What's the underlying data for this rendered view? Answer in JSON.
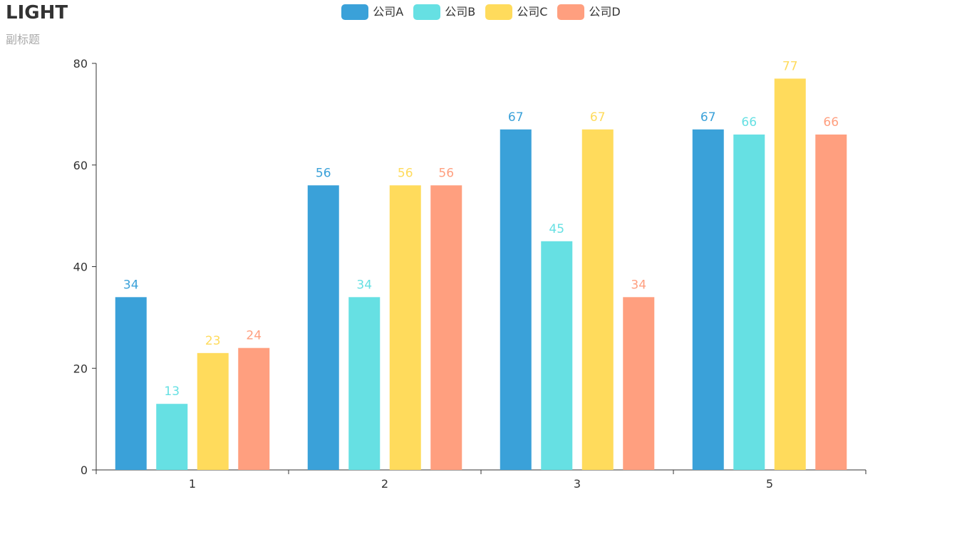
{
  "chart_data": {
    "type": "bar",
    "title": "LIGHT",
    "subtitle": "副标题",
    "categories": [
      "1",
      "2",
      "3",
      "5"
    ],
    "series": [
      {
        "name": "公司A",
        "color": "#3aa1d9",
        "values": [
          34,
          56,
          67,
          67
        ]
      },
      {
        "name": "公司B",
        "color": "#66e0e3",
        "values": [
          13,
          34,
          45,
          66
        ]
      },
      {
        "name": "公司C",
        "color": "#ffdb5c",
        "values": [
          23,
          56,
          67,
          77
        ]
      },
      {
        "name": "公司D",
        "color": "#ff9f7f",
        "values": [
          24,
          56,
          34,
          66
        ]
      }
    ],
    "xlabel": "",
    "ylabel": "",
    "ylim": [
      0,
      80
    ],
    "yticks": [
      0,
      20,
      40,
      60,
      80
    ],
    "grid": false,
    "legend_position": "top-center",
    "data_labels": true
  }
}
